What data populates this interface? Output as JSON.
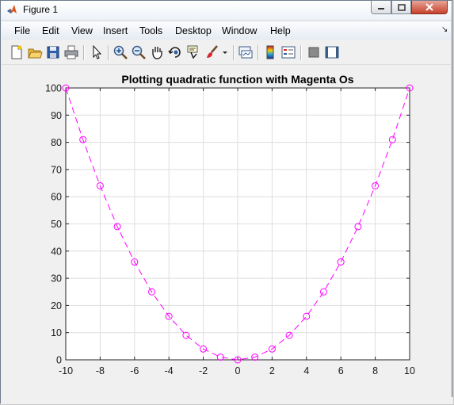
{
  "window": {
    "title": "Figure 1",
    "controls": {
      "minimize": "minimize",
      "maximize": "maximize",
      "close": "close"
    }
  },
  "menubar": {
    "items": [
      "File",
      "Edit",
      "View",
      "Insert",
      "Tools",
      "Desktop",
      "Window",
      "Help"
    ]
  },
  "toolbar": {
    "buttons": [
      {
        "icon": "new-figure-icon"
      },
      {
        "icon": "open-file-icon"
      },
      {
        "icon": "save-icon"
      },
      {
        "icon": "print-icon"
      },
      {
        "icon": "edit-plot-arrow-icon"
      },
      {
        "icon": "zoom-in-icon"
      },
      {
        "icon": "zoom-out-icon"
      },
      {
        "icon": "pan-hand-icon"
      },
      {
        "icon": "rotate-3d-icon"
      },
      {
        "icon": "data-cursor-icon"
      },
      {
        "icon": "brush-icon"
      },
      {
        "icon": "brush-dropdown-icon"
      },
      {
        "icon": "link-plot-icon"
      },
      {
        "icon": "colorbar-icon"
      },
      {
        "icon": "legend-icon"
      },
      {
        "icon": "hide-plot-tools-icon"
      },
      {
        "icon": "show-plot-tools-icon"
      }
    ]
  },
  "chart_data": {
    "type": "line",
    "title": "Plotting quadratic function with Magenta Os",
    "xlabel": "",
    "ylabel": "",
    "x": [
      -10,
      -9,
      -8,
      -7,
      -6,
      -5,
      -4,
      -3,
      -2,
      -1,
      0,
      1,
      2,
      3,
      4,
      5,
      6,
      7,
      8,
      9,
      10
    ],
    "series": [
      {
        "values": [
          100,
          81,
          64,
          49,
          36,
          25,
          16,
          9,
          4,
          1,
          0,
          1,
          4,
          9,
          16,
          25,
          36,
          49,
          64,
          81,
          100
        ],
        "color": "#ff00ff",
        "line_style": "dashed",
        "marker": "circle"
      }
    ],
    "xlim": [
      -10,
      10
    ],
    "ylim": [
      0,
      100
    ],
    "xticks": [
      -10,
      -8,
      -6,
      -4,
      -2,
      0,
      2,
      4,
      6,
      8,
      10
    ],
    "yticks": [
      0,
      10,
      20,
      30,
      40,
      50,
      60,
      70,
      80,
      90,
      100
    ],
    "grid": true,
    "legend": "none"
  }
}
